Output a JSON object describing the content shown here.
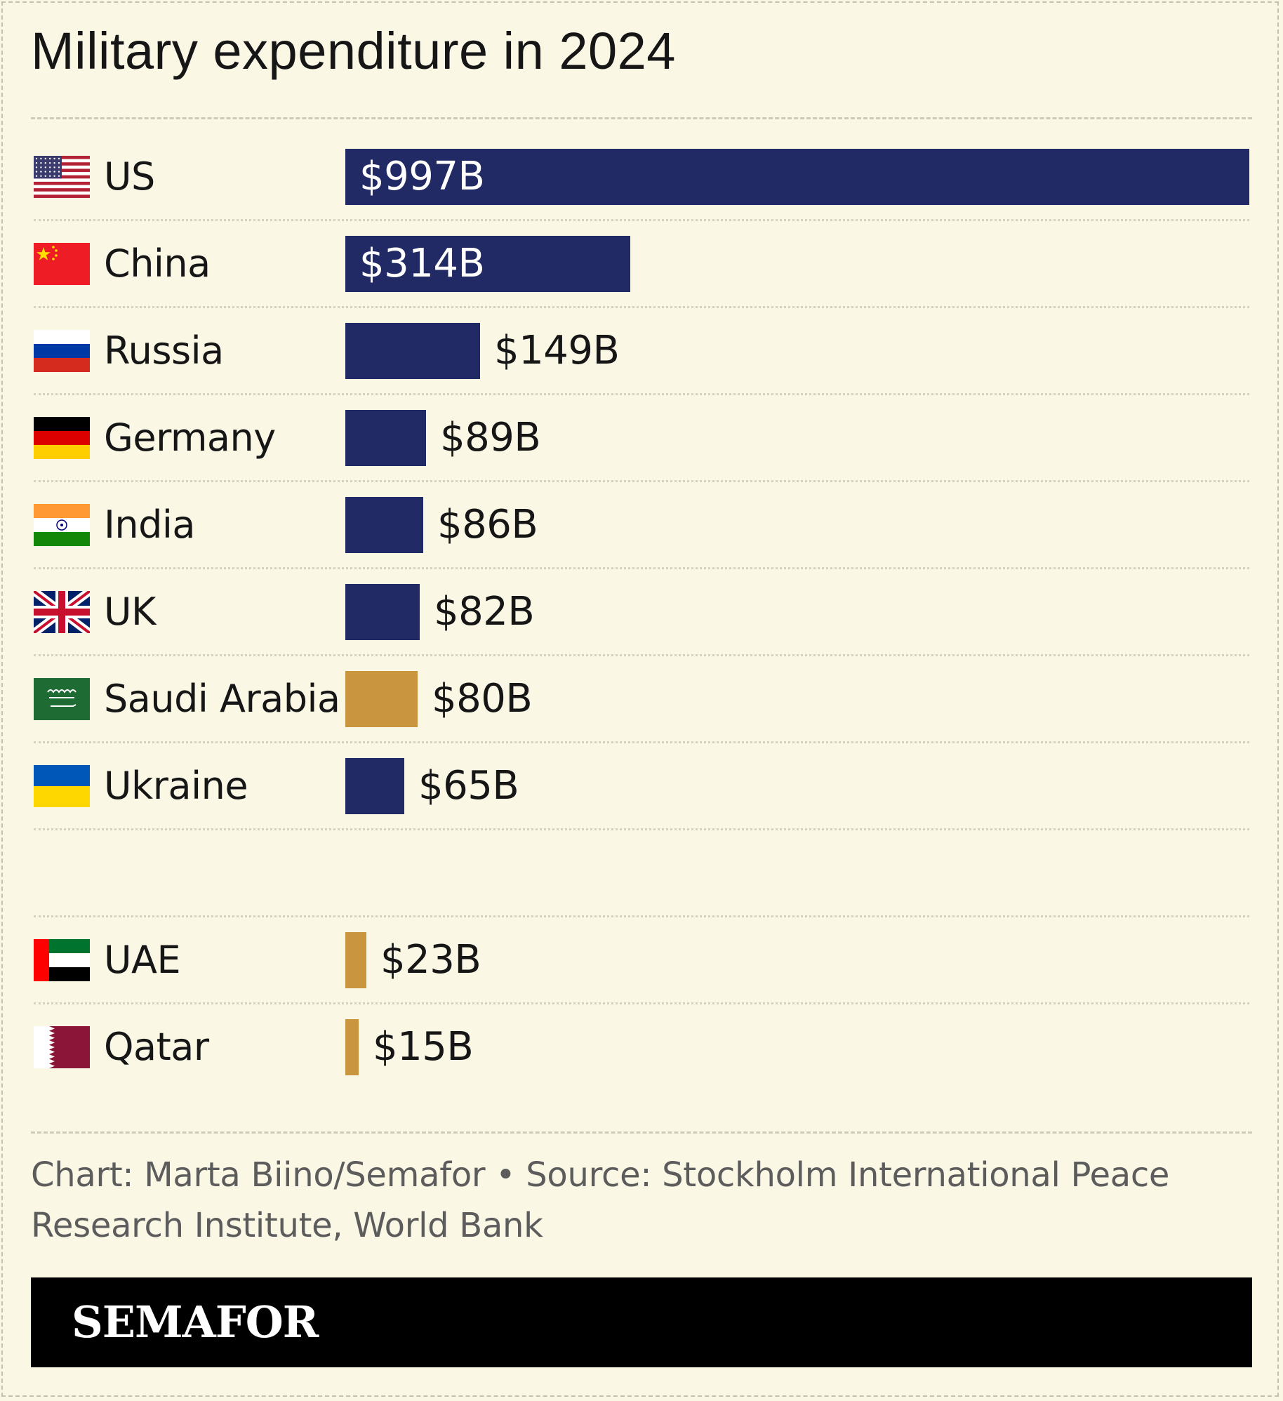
{
  "chart_data": {
    "type": "bar",
    "orientation": "horizontal",
    "title": "Military expenditure in 2024",
    "categories": [
      "US",
      "China",
      "Russia",
      "Germany",
      "India",
      "UK",
      "Saudi Arabia",
      "Ukraine",
      "UAE",
      "Qatar"
    ],
    "values": [
      997,
      314,
      149,
      89,
      86,
      82,
      80,
      65,
      23,
      15
    ],
    "value_labels": [
      "$997B",
      "$314B",
      "$149B",
      "$89B",
      "$86B",
      "$82B",
      "$80B",
      "$65B",
      "$23B",
      "$15B"
    ],
    "unit": "billion US dollars",
    "bar_colors": [
      "#212a65",
      "#212a65",
      "#212a65",
      "#212a65",
      "#212a65",
      "#212a65",
      "#c9953f",
      "#212a65",
      "#c9953f",
      "#c9953f"
    ],
    "xlim": [
      0,
      997
    ],
    "grid": false,
    "legend": false
  },
  "footer": {
    "credit": "Chart: Marta Biino/Semafor • Source: Stockholm International Peace Research Institute, World Bank"
  },
  "brand": "SEMAFOR",
  "colors": {
    "background": "#faf7e5",
    "bar_navy": "#212a65",
    "bar_gold": "#c9953f",
    "brand_bar": "#000000"
  }
}
